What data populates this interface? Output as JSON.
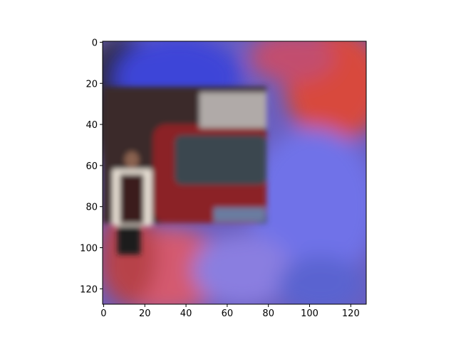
{
  "chart_data": {
    "type": "image",
    "xlim": [
      -0.5,
      127.5
    ],
    "ylim": [
      127.5,
      -0.5
    ],
    "xticks": [
      0,
      20,
      40,
      60,
      80,
      100,
      120
    ],
    "yticks": [
      0,
      20,
      40,
      60,
      80,
      100,
      120
    ]
  }
}
